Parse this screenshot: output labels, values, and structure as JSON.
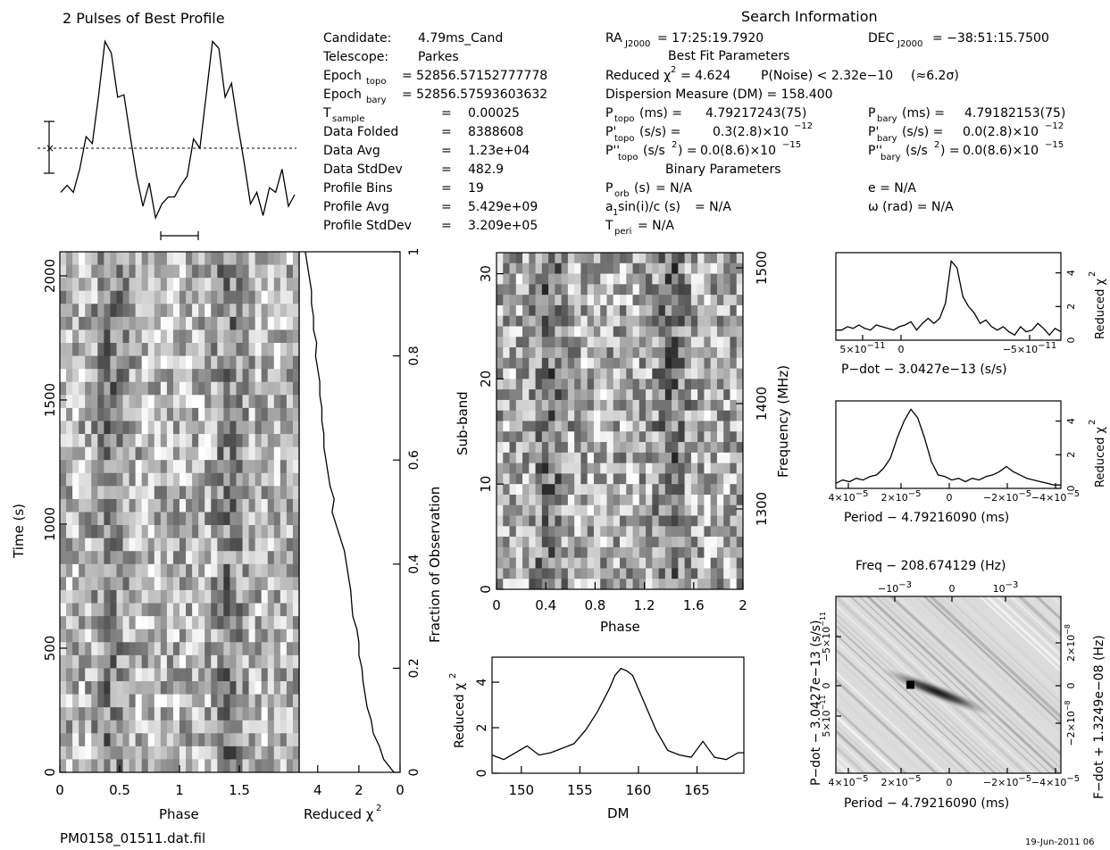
{
  "footer": {
    "filename": "PM0158_01511.dat.fil",
    "date": "19-Jun-2011 06"
  },
  "search_info": {
    "title": "Search Information",
    "best_fit_title": "Best Fit Parameters",
    "binary_title": "Binary Parameters",
    "left_rows": [
      {
        "label": "Candidate:",
        "value": "4.79ms_Cand"
      },
      {
        "label": "Telescope:",
        "value": "Parkes"
      },
      {
        "label": "Epoch",
        "sub": "topo",
        "value": "= 52856.57152777778"
      },
      {
        "label": "Epoch",
        "sub": "bary",
        "value": "= 52856.57593603632"
      },
      {
        "label": "T",
        "sub": "sample",
        "value": "0.00025"
      },
      {
        "label": "Data Folded",
        "value": "8388608"
      },
      {
        "label": "Data Avg",
        "value": "1.23e+04"
      },
      {
        "label": "Data StdDev",
        "value": "482.9"
      },
      {
        "label": "Profile Bins",
        "value": "19"
      },
      {
        "label": "Profile Avg",
        "value": "5.429e+09"
      },
      {
        "label": "Profile StdDev",
        "value": "3.209e+05"
      }
    ],
    "ra": {
      "label": "RA",
      "sub": "J2000",
      "value": "= 17:25:19.7920"
    },
    "dec": {
      "label": "DEC",
      "sub": "J2000",
      "value": "= −38:51:15.7500"
    },
    "reduced_chi2": "= 4.624",
    "p_noise": "P(Noise) < 2.32e−10",
    "sigma": "(≈6.2σ)",
    "dm": "Dispersion Measure (DM) = 158.400",
    "p_topo": "4.79217243(75)",
    "p_bary": "4.79182153(75)",
    "pd_topo": "0.3(2.8)×10",
    "pd_topo_exp": "−12",
    "pd_bary": "0.0(2.8)×10",
    "pd_bary_exp": "−12",
    "pdd_topo": "0.0(8.6)×10",
    "pdd_topo_exp": "−15",
    "pdd_bary": "0.0(8.6)×10",
    "pdd_bary_exp": "−15",
    "p_orb": "= N/A",
    "a_sini": "= N/A",
    "t_peri": "= N/A",
    "ecc": "e = N/A",
    "omega": "ω (rad) = N/A"
  },
  "chart_data": [
    {
      "type": "line",
      "title": "2 Pulses of Best Profile",
      "x": [
        0.0,
        0.053,
        0.105,
        0.158,
        0.211,
        0.263,
        0.316,
        0.368,
        0.421,
        0.474,
        0.526,
        0.579,
        0.632,
        0.684,
        0.737,
        0.789,
        0.842,
        0.895,
        0.947,
        1.0,
        1.053,
        1.105,
        1.158,
        1.211,
        1.263,
        1.316,
        1.368,
        1.421,
        1.474,
        1.526,
        1.579,
        1.632,
        1.684,
        1.737,
        1.789,
        1.842,
        1.895,
        1.947
      ],
      "values": [
        -0.95,
        -0.8,
        -0.95,
        -0.45,
        0.25,
        0.1,
        1.15,
        2.3,
        2.05,
        1.1,
        1.15,
        0.25,
        -0.6,
        -1.25,
        -0.75,
        -1.5,
        -1.2,
        -1.05,
        -1.05,
        -0.8,
        -0.6,
        0.2,
        0.0,
        1.15,
        2.3,
        2.15,
        1.1,
        1.4,
        0.5,
        -0.3,
        -1.2,
        -0.95,
        -1.45,
        -0.85,
        -0.95,
        -0.45,
        -1.25,
        -1.0
      ],
      "error_bar": 1.0,
      "mean": 0
    },
    {
      "type": "heatmap",
      "name": "time-phase",
      "xlabel": "Phase",
      "ylabel": "Time (s)",
      "x_ticks": [
        "0",
        "0.5",
        "1",
        "1.5"
      ],
      "y_ticks": [
        "0",
        "500",
        "1000",
        "1500",
        "2000"
      ],
      "xlim": [
        0,
        2
      ],
      "ylim": [
        0,
        2097
      ],
      "bins_x": 38,
      "bins_y": 40
    },
    {
      "type": "line",
      "name": "chi2-vs-time",
      "xlabel": "Reduced χ",
      "xlabel_sup": "2",
      "ylabel": "Fraction of Observation",
      "x_ticks": [
        "4",
        "2",
        "0"
      ],
      "y_ticks": [
        "0",
        "0.2",
        "0.4",
        "0.6",
        "0.8",
        "1"
      ],
      "xlim": [
        4.9,
        0
      ],
      "ylim": [
        0,
        1
      ],
      "y": [
        0.0,
        0.025,
        0.05,
        0.075,
        0.1,
        0.125,
        0.15,
        0.175,
        0.2,
        0.225,
        0.25,
        0.275,
        0.3,
        0.325,
        0.35,
        0.375,
        0.4,
        0.425,
        0.45,
        0.475,
        0.5,
        0.525,
        0.55,
        0.575,
        0.6,
        0.625,
        0.65,
        0.675,
        0.7,
        0.725,
        0.75,
        0.775,
        0.8,
        0.825,
        0.85,
        0.875,
        0.9,
        0.925,
        0.95,
        0.975,
        1.0
      ],
      "values": [
        0.3,
        0.8,
        1.0,
        1.3,
        1.4,
        1.6,
        1.7,
        1.8,
        1.85,
        2.0,
        2.0,
        2.1,
        2.3,
        2.35,
        2.4,
        2.5,
        2.6,
        2.7,
        2.9,
        3.1,
        3.3,
        3.2,
        3.4,
        3.5,
        3.6,
        3.7,
        3.7,
        3.8,
        3.8,
        3.9,
        3.9,
        4.0,
        4.1,
        4.05,
        4.2,
        4.2,
        4.3,
        4.3,
        4.4,
        4.5,
        4.6
      ]
    },
    {
      "type": "heatmap",
      "name": "subband-phase",
      "xlabel": "Phase",
      "ylabel": "Sub-band",
      "y2label": "Frequency (MHz)",
      "x_ticks": [
        "0",
        "0.4",
        "0.8",
        "1.2",
        "1.6",
        "2"
      ],
      "y_ticks": [
        "0",
        "10",
        "20",
        "30"
      ],
      "y2_ticks": [
        "1300",
        "1400",
        "1500"
      ],
      "xlim": [
        0,
        2
      ],
      "ylim": [
        0,
        32
      ],
      "bins_x": 38,
      "bins_y": 32
    },
    {
      "type": "line",
      "name": "chi2-vs-dm",
      "xlabel": "DM",
      "ylabel": "Reduced χ",
      "ylabel_sup": "2",
      "x_ticks": [
        "150",
        "155",
        "160",
        "165"
      ],
      "y_ticks": [
        "0",
        "2",
        "4"
      ],
      "xlim": [
        147.5,
        169
      ],
      "ylim": [
        0,
        5.1
      ],
      "x": [
        147.5,
        148.5,
        149.5,
        150.5,
        151.5,
        152.5,
        153.5,
        154.5,
        155.5,
        156.5,
        157.5,
        158.0,
        158.5,
        159.0,
        159.5,
        160.5,
        161.5,
        162.5,
        163.5,
        164.5,
        165.5,
        166.5,
        167.5,
        168.5,
        169.0
      ],
      "values": [
        0.8,
        0.6,
        0.9,
        1.2,
        0.8,
        0.9,
        1.1,
        1.3,
        1.9,
        2.7,
        3.7,
        4.3,
        4.6,
        4.5,
        4.3,
        3.1,
        1.9,
        1.0,
        0.8,
        0.7,
        1.4,
        0.7,
        0.6,
        0.9,
        0.9
      ]
    },
    {
      "type": "line",
      "name": "chi2-vs-pdot",
      "xlabel": "P−dot − 3.0427e−13 (s/s)",
      "ylabel": "Reduced χ",
      "ylabel_sup": "2",
      "x_ticks": [
        "5×10",
        "0",
        "−5×10"
      ],
      "x_tick_exp": "−11",
      "y_ticks": [
        "0",
        "2",
        "4"
      ],
      "xlim": [
        9e-11,
        -9e-11
      ],
      "ylim": [
        0,
        5.2
      ],
      "values": [
        0.6,
        0.6,
        0.8,
        0.7,
        0.9,
        0.7,
        0.6,
        0.9,
        0.8,
        0.7,
        0.6,
        0.8,
        0.9,
        1.1,
        0.6,
        1.0,
        1.3,
        1.0,
        1.3,
        2.2,
        4.7,
        4.3,
        2.6,
        2.0,
        1.6,
        1.0,
        1.2,
        0.8,
        0.6,
        0.8,
        0.5,
        0.3,
        0.8,
        0.5,
        0.6,
        1.0,
        0.7,
        0.3,
        0.7,
        0.5
      ]
    },
    {
      "type": "line",
      "name": "chi2-vs-period",
      "xlabel": "Period − 4.79216090 (ms)",
      "ylabel": "Reduced χ",
      "ylabel_sup": "2",
      "x_ticks": [
        "4×10",
        "2×10",
        "0",
        "−2×10",
        "−4×10"
      ],
      "x_tick_exp": "−5",
      "y_ticks": [
        "0",
        "2",
        "4"
      ],
      "xlim": [
        4e-05,
        -4e-05
      ],
      "ylim": [
        0,
        5.2
      ],
      "values": [
        0.3,
        0.5,
        0.4,
        0.6,
        0.5,
        0.7,
        0.8,
        1.2,
        1.8,
        3.0,
        4.0,
        4.7,
        4.2,
        3.0,
        1.6,
        0.8,
        0.7,
        0.5,
        0.6,
        0.4,
        0.6,
        0.5,
        0.7,
        0.8,
        1.0,
        1.3,
        1.0,
        0.8,
        0.6,
        0.5,
        0.4,
        0.3,
        0.2,
        0.2
      ]
    },
    {
      "type": "heatmap",
      "name": "pdot-period",
      "title": "Freq − 208.674129 (Hz)",
      "xlabel": "Period − 4.79216090 (ms)",
      "ylabel": "P−dot − 3.0427e−13 (s/s)",
      "y2label": "F−dot + 1.3249e−08 (Hz)",
      "x_ticks": [
        "4×10",
        "2×10",
        "0",
        "−2×10",
        "−4×10"
      ],
      "x_tick_exp": "−5",
      "top_ticks": [
        "−10",
        "0",
        "10"
      ],
      "top_tick_exp": "−3",
      "y_ticks": [
        "5×10",
        "0",
        "−5×10"
      ],
      "y_tick_exp": "−11",
      "y2_ticks": [
        "−2×10",
        "0",
        "2×10"
      ],
      "y2_tick_exp": "−8",
      "xlim": [
        4e-05,
        -4e-05
      ],
      "ylim": [
        -9e-11,
        9e-11
      ],
      "peak": {
        "period": 1.35e-05,
        "pdot": 0
      }
    }
  ]
}
